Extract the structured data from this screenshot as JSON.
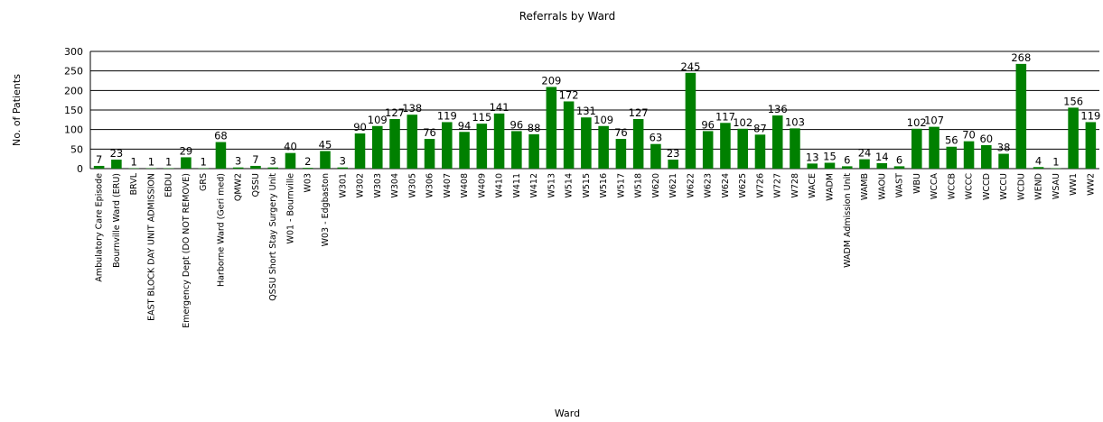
{
  "chart_data": {
    "type": "bar",
    "title": "Referrals by Ward",
    "x_label": "Ward",
    "y_label": "No. of Patients",
    "categories": [
      "Ambulatory Care Episode",
      "Bournville Ward (ERU)",
      "BRVL",
      "EAST BLOCK DAY UNIT ADMISSION",
      "EBDU",
      "Emergency Dept (DO NOT REMOVE)",
      "GRS",
      "Harborne Ward (Geri med)",
      "QMW2",
      "QSSU",
      "QSSU Short Stay Surgery Unit",
      "W01 - Bournville",
      "W03",
      "W03 - Edgbaston",
      "W301",
      "W302",
      "W303",
      "W304",
      "W305",
      "W306",
      "W407",
      "W408",
      "W409",
      "W410",
      "W411",
      "W412",
      "W513",
      "W514",
      "W515",
      "W516",
      "W517",
      "W518",
      "W620",
      "W621",
      "W622",
      "W623",
      "W624",
      "W625",
      "W726",
      "W727",
      "W728",
      "WACE",
      "WADM",
      "WADM Admission Unit",
      "WAMB",
      "WAOU",
      "WAST",
      "WBU",
      "WCCA",
      "WCCB",
      "WCCC",
      "WCCD",
      "WCCU",
      "WCDU",
      "WEND",
      "WSAU",
      "WW1",
      "WW2"
    ],
    "values": [
      7,
      23,
      1,
      1,
      1,
      29,
      1,
      68,
      3,
      7,
      3,
      40,
      2,
      45,
      3,
      90,
      109,
      127,
      138,
      76,
      119,
      94,
      115,
      141,
      96,
      88,
      209,
      172,
      131,
      109,
      76,
      127,
      63,
      23,
      245,
      96,
      117,
      102,
      87,
      136,
      103,
      13,
      15,
      6,
      24,
      14,
      6,
      102,
      107,
      56,
      70,
      60,
      38,
      268,
      4,
      1,
      156,
      119
    ],
    "color": "#008000",
    "ylim": [
      0,
      300
    ],
    "yticks": [
      0,
      50,
      100,
      150,
      200,
      250,
      300
    ],
    "grid": true
  }
}
